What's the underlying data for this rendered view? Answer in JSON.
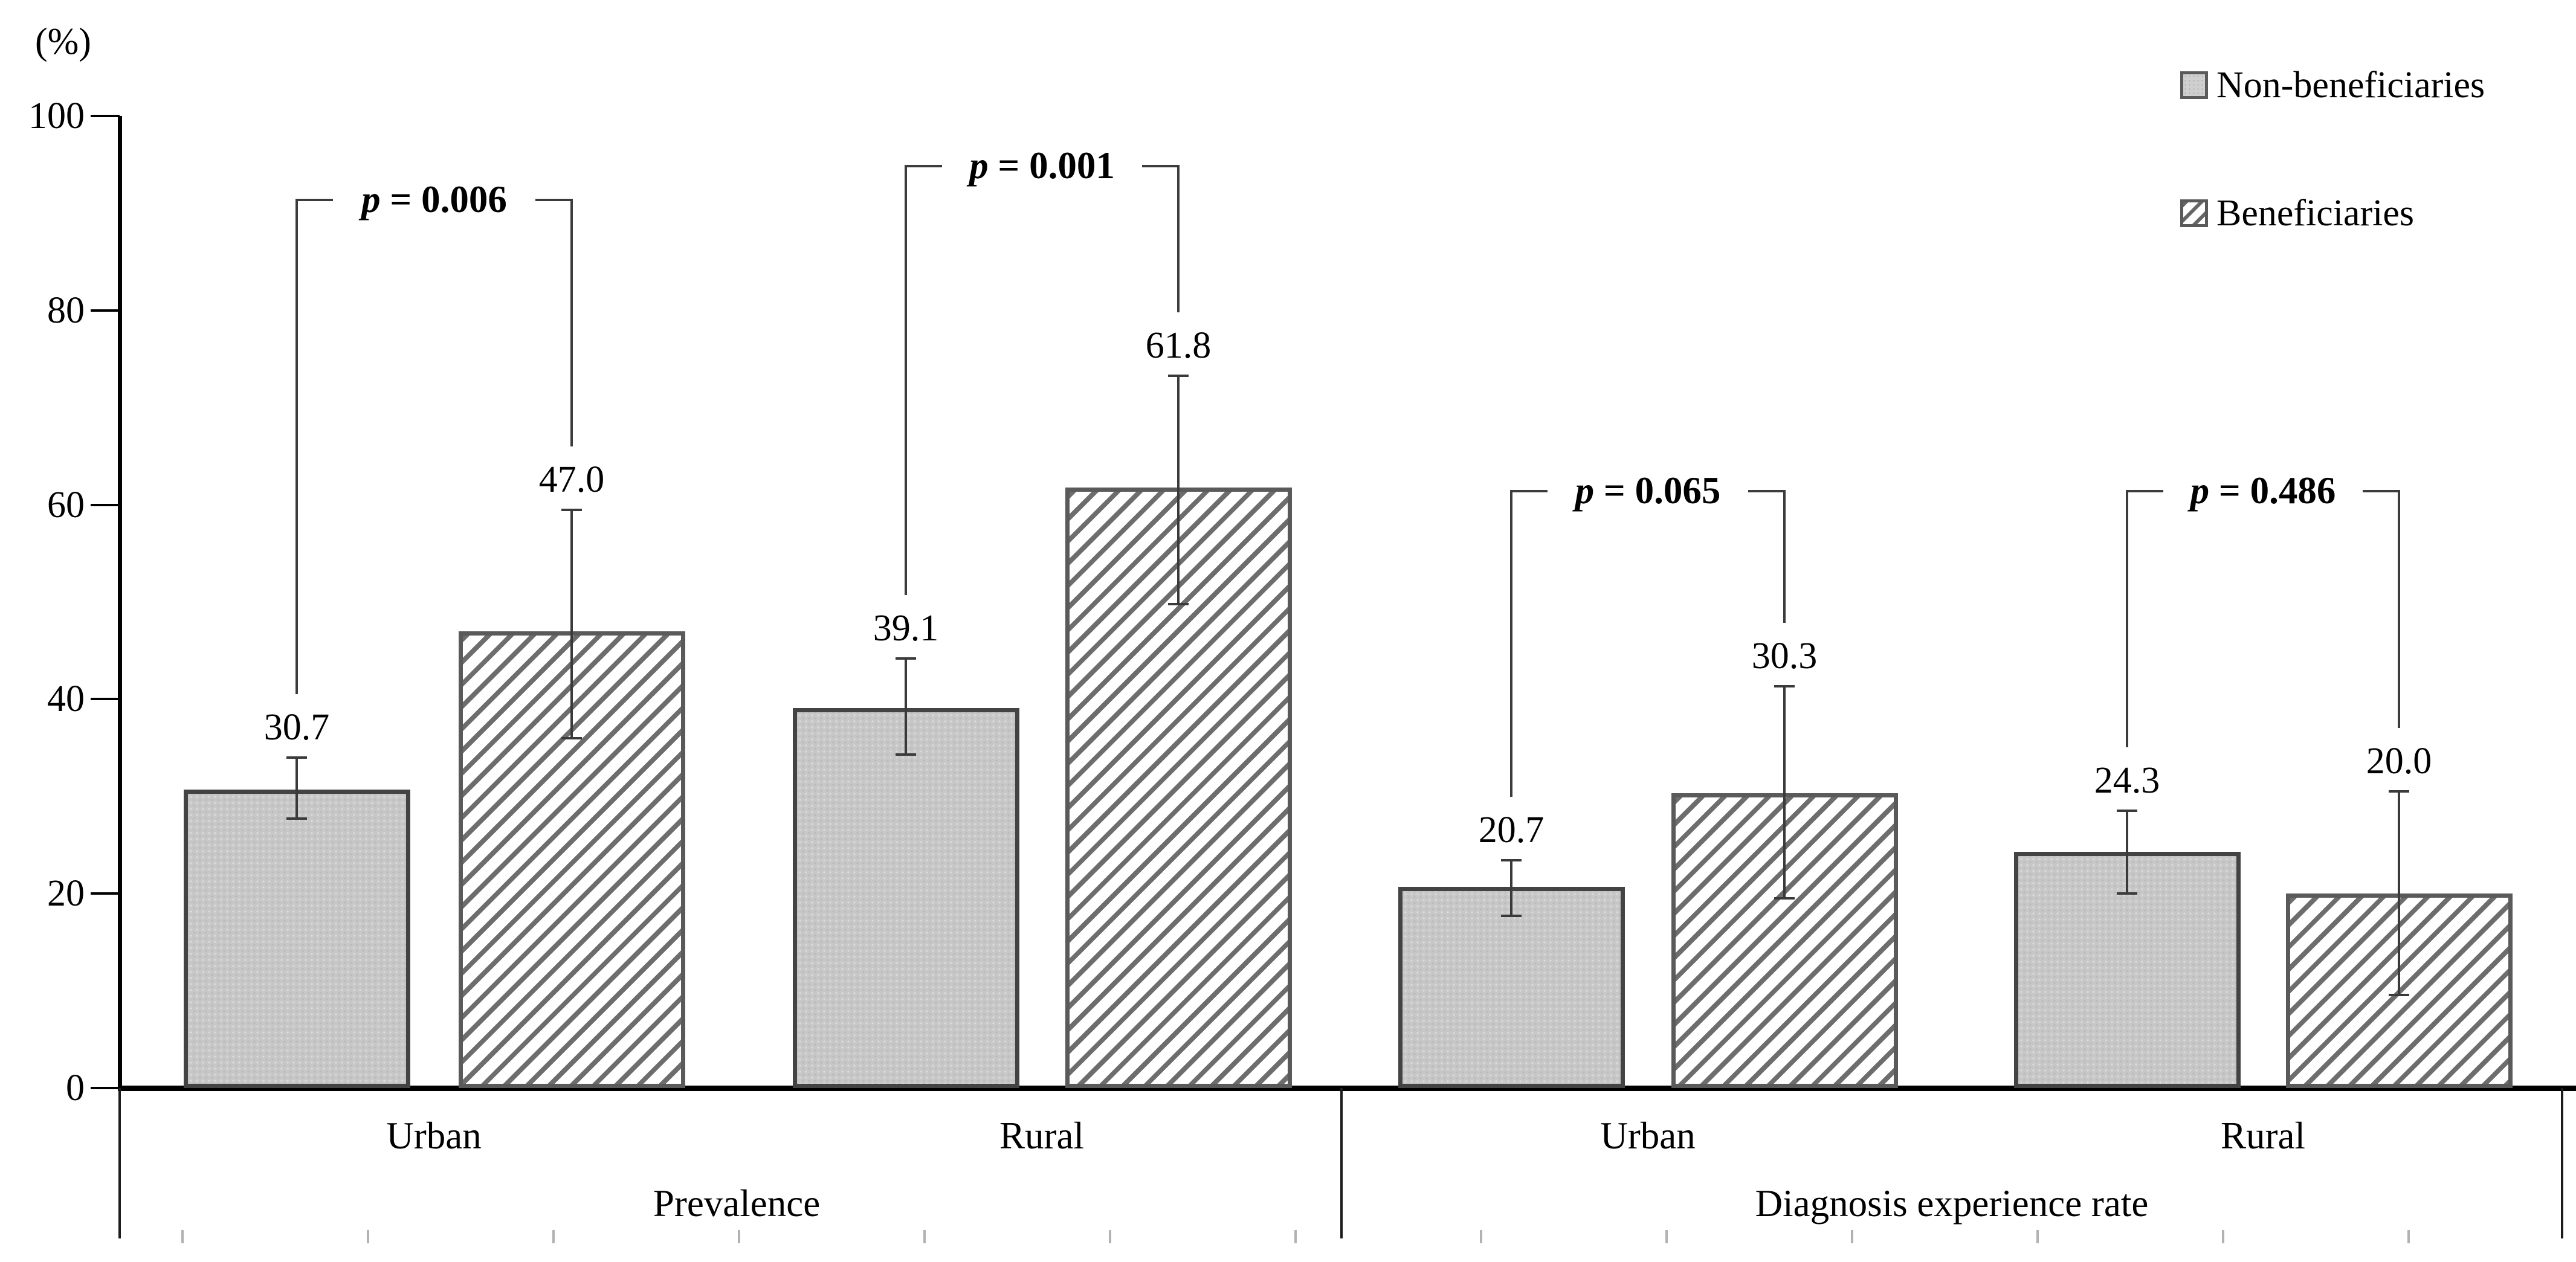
{
  "figure": {
    "y_axis_unit_label": "(%)"
  },
  "legend": {
    "items": [
      {
        "label": "Non-beneficiaries",
        "swatch": "solid-gray-square-icon"
      },
      {
        "label": "Beneficiaries",
        "swatch": "diagonal-hatch-square-icon"
      }
    ]
  },
  "colors": {
    "solid_bar_fill": "#c7c7c7",
    "solid_bar_border": "#434343",
    "hatch_stripe": "#6d6d6d",
    "hatch_bar_border": "#5a5a5a",
    "axis": "#000000",
    "error_bar": "#3a3a3a",
    "bottom_tick": "#b2b2b2"
  },
  "chart_data": {
    "type": "bar",
    "title": "",
    "ylabel": "(%)",
    "xlabel": "",
    "ylim": [
      0,
      100
    ],
    "yticks": [
      0,
      20,
      40,
      60,
      80,
      100
    ],
    "grid": false,
    "legend_position": "top-right",
    "series_names": [
      "Non-beneficiaries",
      "Beneficiaries"
    ],
    "groups": [
      {
        "label": "Prevalence",
        "categories": [
          {
            "label": "Urban",
            "p_label": "p = 0.006",
            "bars": [
              {
                "series": "Non-beneficiaries",
                "value": 30.7,
                "display": "30.7",
                "err_up": 3.3,
                "err_down": 3.0
              },
              {
                "series": "Beneficiaries",
                "value": 47.0,
                "display": "47.0",
                "err_up": 12.5,
                "err_down": 11.0
              }
            ]
          },
          {
            "label": "Rural",
            "p_label": "p = 0.001",
            "bars": [
              {
                "series": "Non-beneficiaries",
                "value": 39.1,
                "display": "39.1",
                "err_up": 5.1,
                "err_down": 4.8
              },
              {
                "series": "Beneficiaries",
                "value": 61.8,
                "display": "61.8",
                "err_up": 11.5,
                "err_down": 12.0
              }
            ]
          }
        ]
      },
      {
        "label": "Diagnosis experience rate",
        "categories": [
          {
            "label": "Urban",
            "p_label": "p = 0.065",
            "bars": [
              {
                "series": "Non-beneficiaries",
                "value": 20.7,
                "display": "20.7",
                "err_up": 2.7,
                "err_down": 3.0
              },
              {
                "series": "Beneficiaries",
                "value": 30.3,
                "display": "30.3",
                "err_up": 11.0,
                "err_down": 10.8
              }
            ]
          },
          {
            "label": "Rural",
            "p_label": "p = 0.486",
            "bars": [
              {
                "series": "Non-beneficiaries",
                "value": 24.3,
                "display": "24.3",
                "err_up": 4.2,
                "err_down": 4.3
              },
              {
                "series": "Beneficiaries",
                "value": 20.0,
                "display": "20.0",
                "err_up": 10.5,
                "err_down": 10.4
              }
            ]
          }
        ]
      }
    ]
  }
}
